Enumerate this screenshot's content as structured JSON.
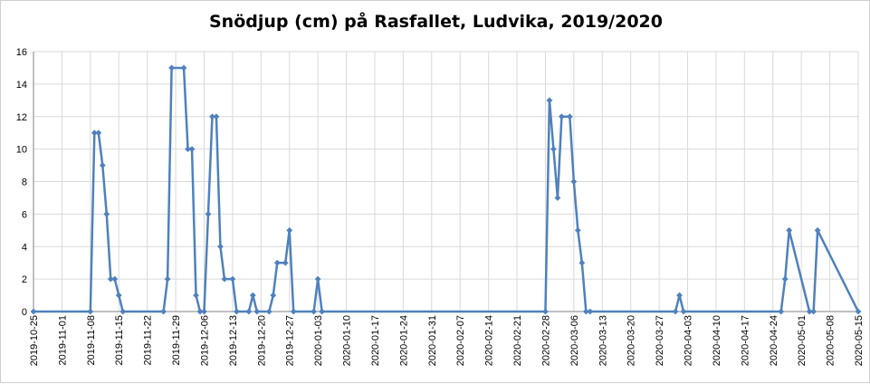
{
  "chart_data": {
    "type": "line",
    "title": "Snödjup (cm) på Rasfallet, Ludvika, 2019/2020",
    "xlabel": "",
    "ylabel": "",
    "ylim": [
      0,
      16
    ],
    "yticks": [
      "0",
      "2",
      "4",
      "6",
      "8",
      "10",
      "12",
      "14",
      "16"
    ],
    "xrange": [
      "2019-10-25",
      "2020-05-15"
    ],
    "xticks": [
      "2019-10-25",
      "2019-11-01",
      "2019-11-08",
      "2019-11-15",
      "2019-11-22",
      "2019-11-29",
      "2019-12-06",
      "2019-12-13",
      "2019-12-20",
      "2019-12-27",
      "2020-01-03",
      "2020-01-10",
      "2020-01-17",
      "2020-01-24",
      "2020-01-31",
      "2020-02-07",
      "2020-02-14",
      "2020-02-21",
      "2020-02-28",
      "2020-03-06",
      "2020-03-13",
      "2020-03-20",
      "2020-03-27",
      "2020-04-03",
      "2020-04-10",
      "2020-04-17",
      "2020-04-24",
      "2020-05-01",
      "2020-05-08",
      "2020-05-15"
    ],
    "grid": true,
    "line_color": "#4F81BD",
    "series": [
      {
        "x": [
          "2019-10-25",
          "2019-11-08",
          "2019-11-09",
          "2019-11-10",
          "2019-11-11",
          "2019-11-12",
          "2019-11-13",
          "2019-11-14",
          "2019-11-15",
          "2019-11-16",
          "2019-11-26",
          "2019-11-27",
          "2019-11-28",
          "2019-12-01",
          "2019-12-02",
          "2019-12-03",
          "2019-12-04",
          "2019-12-05",
          "2019-12-06",
          "2019-12-07",
          "2019-12-08",
          "2019-12-09",
          "2019-12-10",
          "2019-12-11",
          "2019-12-13",
          "2019-12-14",
          "2019-12-17",
          "2019-12-18",
          "2019-12-19",
          "2019-12-22",
          "2019-12-23",
          "2019-12-24",
          "2019-12-26",
          "2019-12-27",
          "2019-12-28",
          "2020-01-02",
          "2020-01-03",
          "2020-01-04",
          "2020-02-28",
          "2020-02-29",
          "2020-03-01",
          "2020-03-02",
          "2020-03-03",
          "2020-03-05",
          "2020-03-06",
          "2020-03-07",
          "2020-03-08",
          "2020-03-09",
          "2020-03-10",
          "2020-03-31",
          "2020-04-01",
          "2020-04-02",
          "2020-04-26",
          "2020-04-27",
          "2020-04-28",
          "2020-05-03",
          "2020-05-04",
          "2020-05-05",
          "2020-05-15"
        ],
        "values": [
          0,
          0,
          11,
          11,
          9,
          6,
          2,
          2,
          1,
          0,
          0,
          2,
          15,
          15,
          10,
          10,
          1,
          0,
          0,
          6,
          12,
          12,
          4,
          2,
          2,
          0,
          0,
          1,
          0,
          0,
          1,
          3,
          3,
          5,
          0,
          0,
          2,
          0,
          0,
          13,
          10,
          7,
          12,
          12,
          8,
          5,
          3,
          0,
          0,
          0,
          1,
          0,
          0,
          2,
          5,
          0,
          0,
          5,
          0
        ]
      }
    ]
  }
}
